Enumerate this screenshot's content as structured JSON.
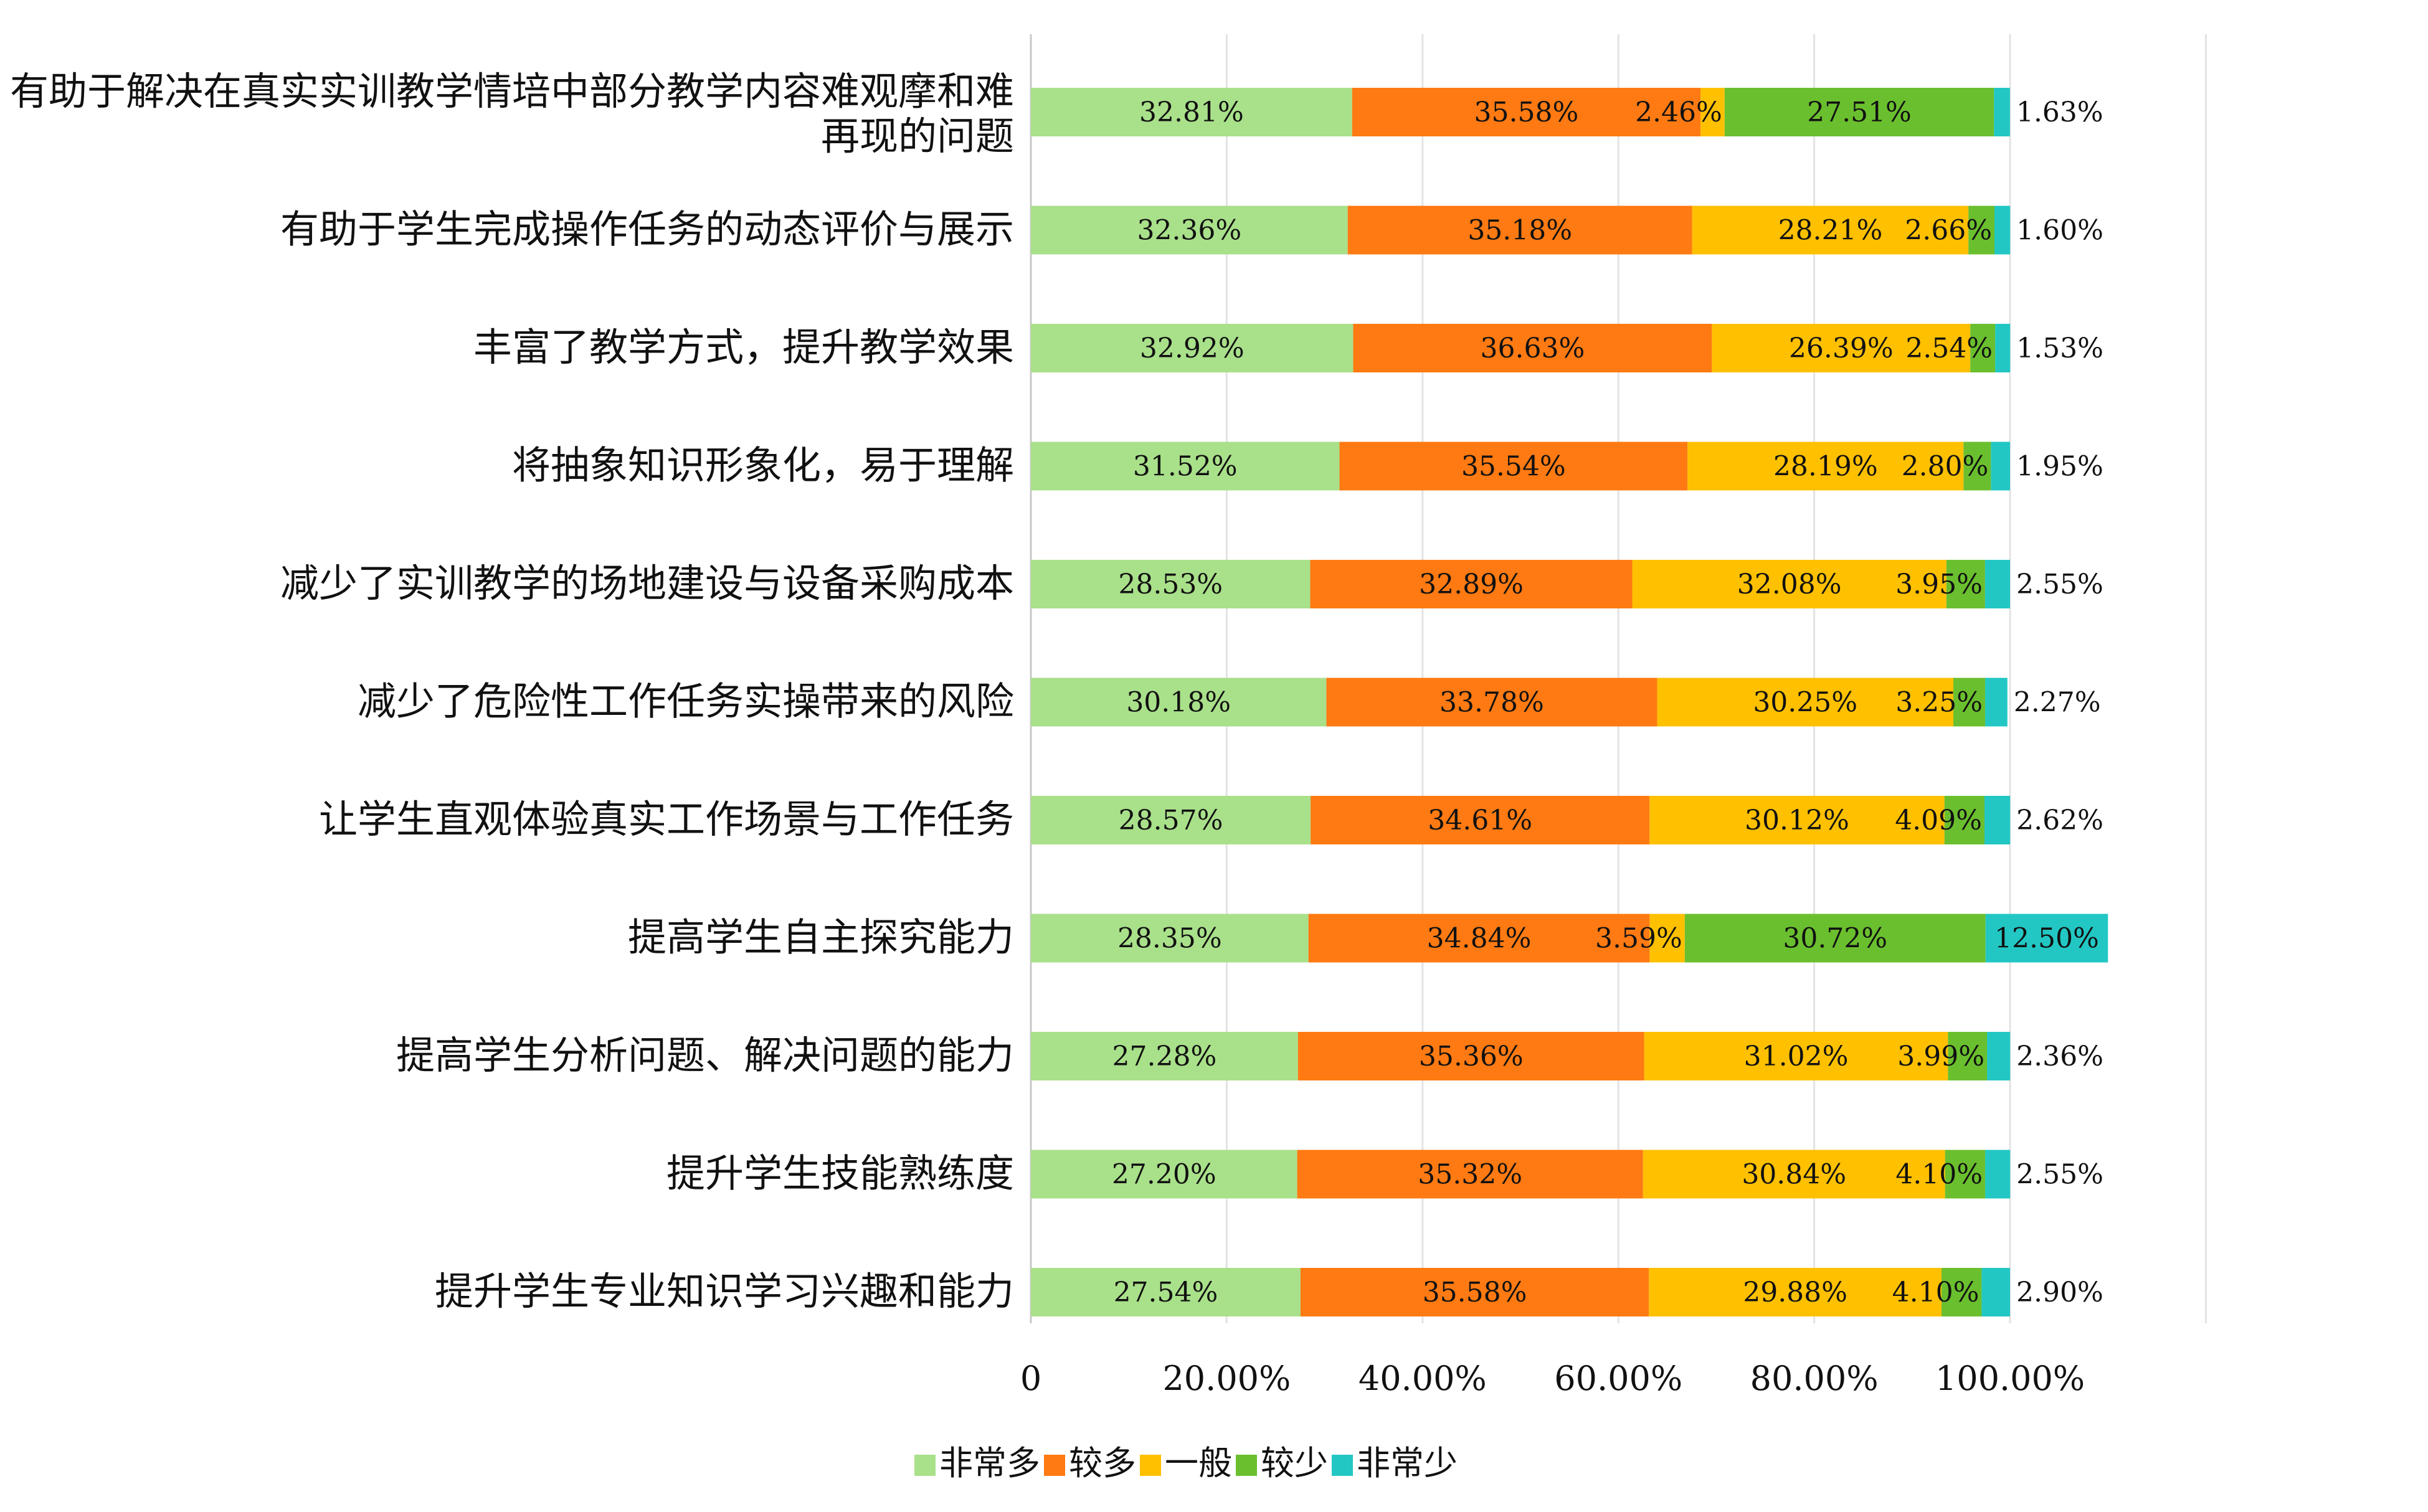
{
  "chart_data": {
    "type": "bar",
    "orientation": "horizontal",
    "stacked": true,
    "categories": [
      "有助于解决在真实实训教学情培中部分教学内容难观摩和难再现的问题",
      "有助于学生完成操作任务的动态评价与展示",
      "丰富了教学方式，提升教学效果",
      "将抽象知识形象化，易于理解",
      "减少了实训教学的场地建设与设备采购成本",
      "减少了危险性工作任务实操带来的风险",
      "让学生直观体验真实工作场景与工作任务",
      "提高学生自主探究能力",
      "提高学生分析问题、解决问题的能力",
      "提升学生技能熟练度",
      "提升学生专业知识学习兴趣和能力"
    ],
    "series": [
      {
        "name": "非常多",
        "color": "#a9e08a",
        "values": [
          32.81,
          32.36,
          32.92,
          31.52,
          28.53,
          30.18,
          28.57,
          28.35,
          27.28,
          27.2,
          27.54
        ],
        "labels": [
          "32.81%",
          "32.36%",
          "32.92%",
          "31.52%",
          "28.53%",
          "30.18%",
          "28.57%",
          "28.35%",
          "27.28%",
          "27.20%",
          "27.54%"
        ]
      },
      {
        "name": "较多",
        "color": "#ff7a12",
        "values": [
          35.58,
          35.18,
          36.63,
          35.54,
          32.89,
          33.78,
          34.61,
          34.84,
          35.36,
          35.32,
          35.58
        ],
        "labels": [
          "35.58%",
          "35.18%",
          "36.63%",
          "35.54%",
          "32.89%",
          "33.78%",
          "34.61%",
          "34.84%",
          "35.36%",
          "35.32%",
          "35.58%"
        ]
      },
      {
        "name": "一般",
        "color": "#ffc000",
        "values": [
          2.46,
          28.21,
          26.39,
          28.19,
          32.08,
          30.25,
          30.12,
          3.59,
          31.02,
          30.84,
          29.88
        ],
        "labels": [
          "2.46%",
          "28.21%",
          "26.39%",
          "28.19%",
          "32.08%",
          "30.25%",
          "30.12%",
          "3.59%",
          "31.02%",
          "30.84%",
          "29.88%"
        ]
      },
      {
        "name": "较少",
        "color": "#6abf2e",
        "values": [
          27.51,
          2.66,
          2.54,
          2.8,
          3.95,
          3.25,
          4.09,
          30.72,
          3.99,
          4.1,
          4.1
        ],
        "labels": [
          "27.51%",
          "2.66%",
          "2.54%",
          "2.80%",
          "3.95%",
          "3.25%",
          "4.09%",
          "30.72%",
          "3.99%",
          "4.10%",
          "4.10%"
        ]
      },
      {
        "name": "非常少",
        "color": "#22c7c4",
        "values": [
          1.63,
          1.6,
          1.53,
          1.95,
          2.55,
          2.27,
          2.62,
          12.5,
          2.36,
          2.55,
          2.9
        ],
        "labels": [
          "1.63%",
          "1.60%",
          "1.53%",
          "1.95%",
          "2.55%",
          "2.27%",
          "2.62%",
          "12.50%",
          "2.36%",
          "2.55%",
          "2.90%"
        ]
      }
    ],
    "xaxis": {
      "ticks": [
        0,
        20,
        40,
        60,
        80,
        100
      ],
      "tick_labels": [
        "0",
        "20.00%",
        "40.00%",
        "60.00%",
        "80.00%",
        "100.00%"
      ],
      "range": [
        0,
        120
      ]
    },
    "grid": "vertical",
    "legend": {
      "position": "bottom",
      "items": [
        "非常多",
        "较多",
        "一般",
        "较少",
        "非常少"
      ]
    }
  }
}
